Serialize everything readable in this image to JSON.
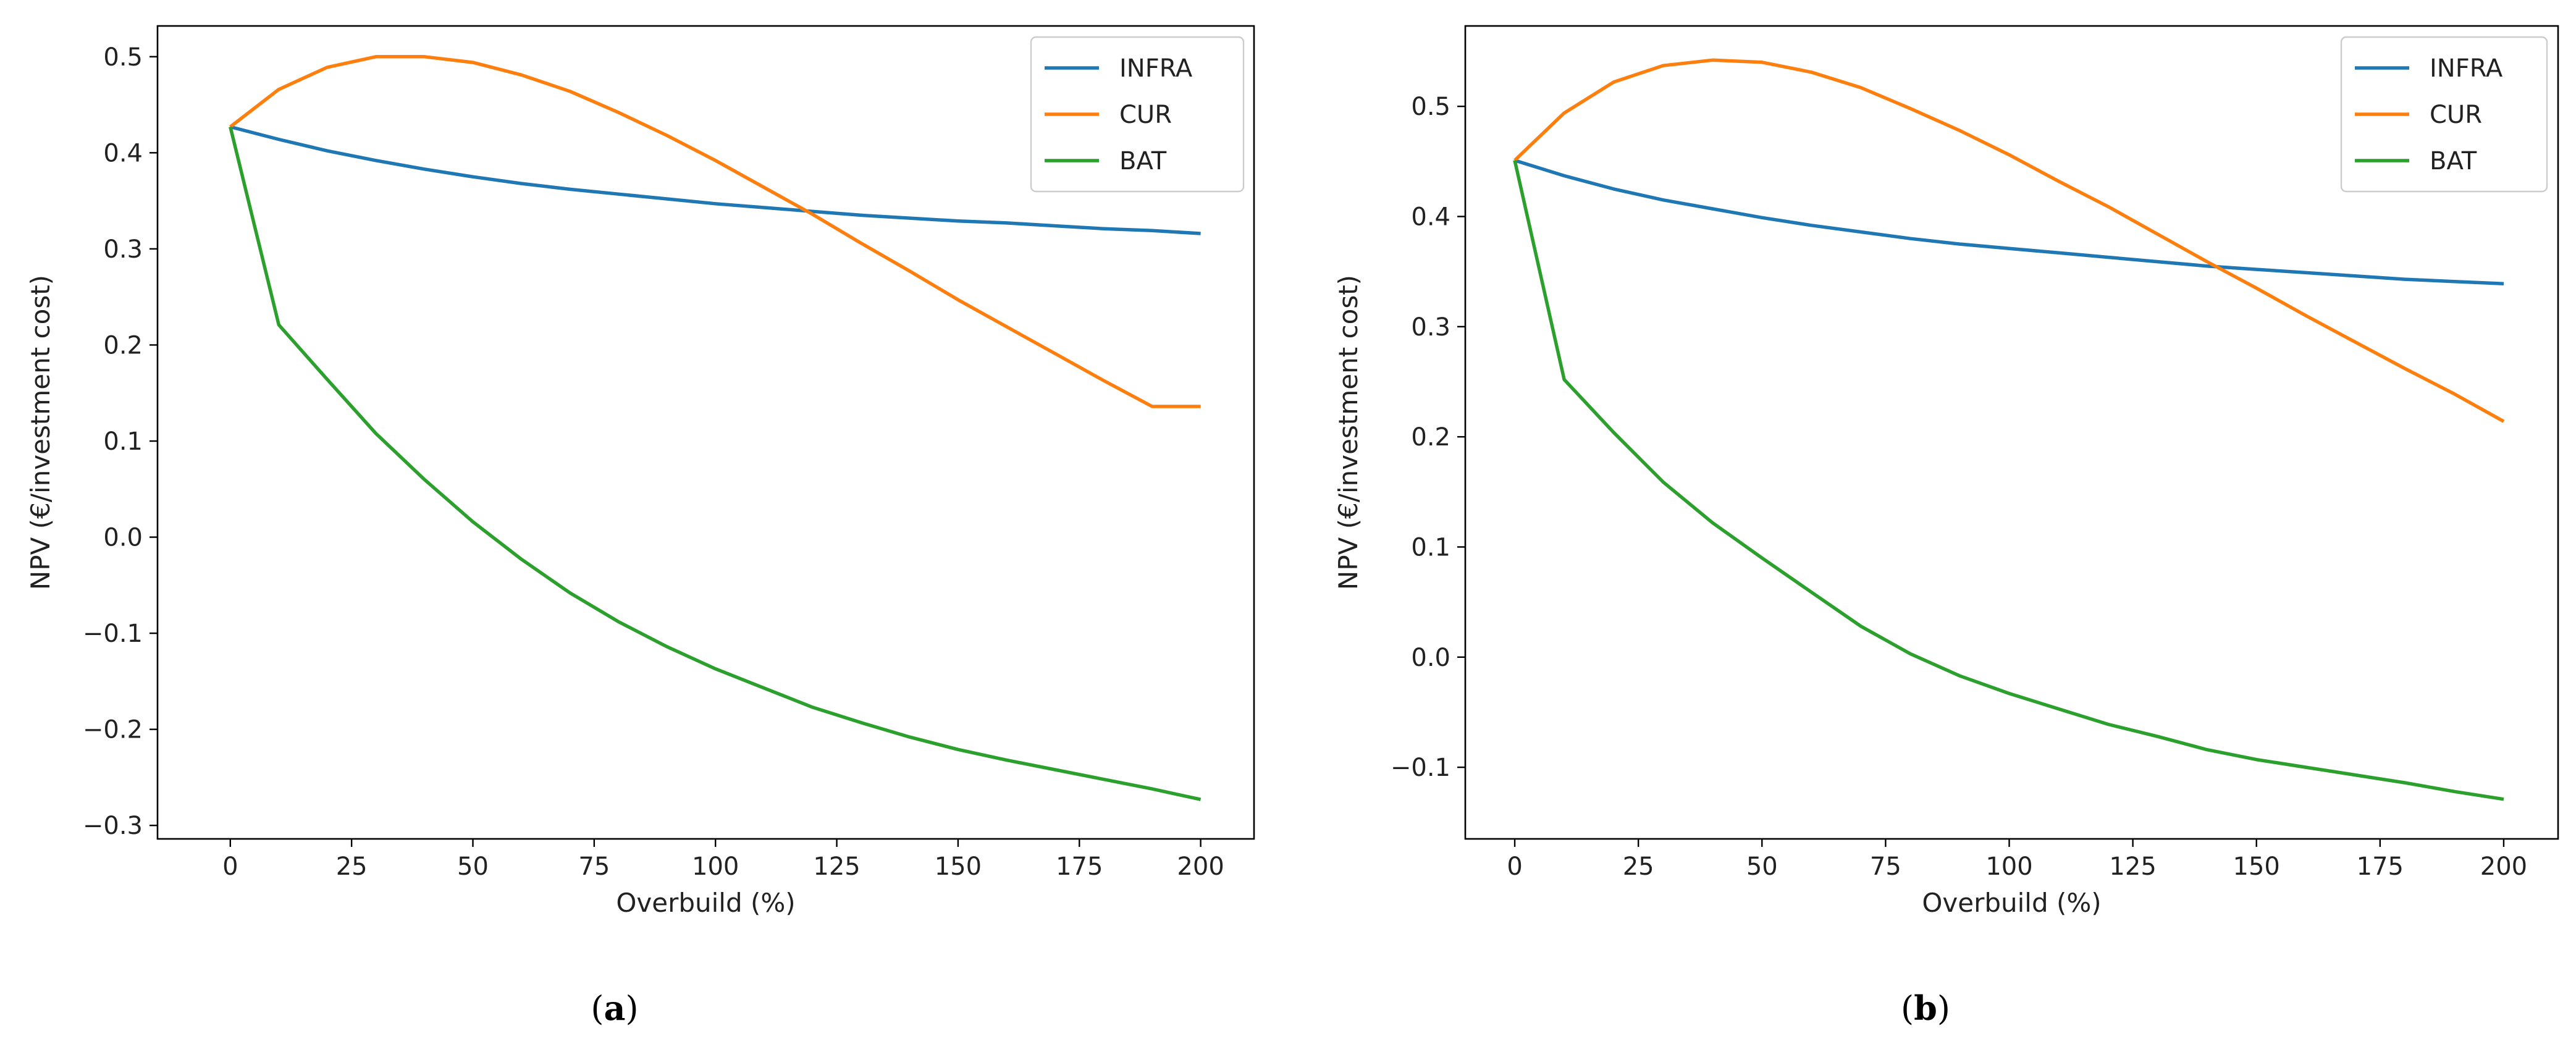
{
  "figure": {
    "captions": [
      "a",
      "b"
    ]
  },
  "colors": {
    "INFRA": "#1f77b4",
    "CUR": "#ff7f0e",
    "BAT": "#2ca02c"
  },
  "chart_data": [
    {
      "type": "line",
      "panel": "a",
      "xlabel": "Overbuild (%)",
      "ylabel": "NPV (€/investment cost)",
      "x": [
        0,
        10,
        20,
        30,
        40,
        50,
        60,
        70,
        80,
        90,
        100,
        110,
        120,
        130,
        140,
        150,
        160,
        170,
        180,
        190,
        200
      ],
      "xlim": [
        -15,
        211
      ],
      "ylim": [
        -0.314,
        0.532
      ],
      "xticks": [
        0,
        25,
        50,
        75,
        100,
        125,
        150,
        175,
        200
      ],
      "yticks": [
        -0.3,
        -0.2,
        -0.1,
        0.0,
        0.1,
        0.2,
        0.3,
        0.4,
        0.5
      ],
      "ytick_labels": [
        "−0.3",
        "−0.2",
        "−0.1",
        "0.0",
        "0.1",
        "0.2",
        "0.3",
        "0.4",
        "0.5"
      ],
      "legend": "top-right",
      "grid": false,
      "series": [
        {
          "name": "INFRA",
          "values": [
            0.427,
            0.414,
            0.402,
            0.392,
            0.383,
            0.375,
            0.368,
            0.362,
            0.357,
            0.352,
            0.347,
            0.343,
            0.339,
            0.335,
            0.332,
            0.329,
            0.327,
            0.324,
            0.321,
            0.319,
            0.316
          ]
        },
        {
          "name": "CUR",
          "values": [
            0.427,
            0.466,
            0.489,
            0.5,
            0.5,
            0.494,
            0.481,
            0.464,
            0.442,
            0.418,
            0.392,
            0.364,
            0.336,
            0.306,
            0.277,
            0.247,
            0.219,
            0.191,
            0.163,
            0.136,
            0.136
          ]
        },
        {
          "name": "BAT",
          "values": [
            0.427,
            0.221,
            0.164,
            0.108,
            0.06,
            0.016,
            -0.023,
            -0.058,
            -0.088,
            -0.114,
            -0.137,
            -0.157,
            -0.177,
            -0.193,
            -0.208,
            -0.221,
            -0.232,
            -0.242,
            -0.252,
            -0.262,
            -0.273
          ]
        }
      ]
    },
    {
      "type": "line",
      "panel": "b",
      "xlabel": "Overbuild (%)",
      "ylabel": "NPV (€/investment cost)",
      "x": [
        0,
        10,
        20,
        30,
        40,
        50,
        60,
        70,
        80,
        90,
        100,
        110,
        120,
        130,
        140,
        150,
        160,
        170,
        180,
        190,
        200
      ],
      "xlim": [
        -10,
        211
      ],
      "ylim": [
        -0.165,
        0.573
      ],
      "xticks": [
        0,
        25,
        50,
        75,
        100,
        125,
        150,
        175,
        200
      ],
      "yticks": [
        -0.1,
        0.0,
        0.1,
        0.2,
        0.3,
        0.4,
        0.5
      ],
      "ytick_labels": [
        "−0.1",
        "0.0",
        "0.1",
        "0.2",
        "0.3",
        "0.4",
        "0.5"
      ],
      "legend": "top-right",
      "grid": false,
      "series": [
        {
          "name": "INFRA",
          "values": [
            0.451,
            0.437,
            0.425,
            0.415,
            0.407,
            0.399,
            0.392,
            0.386,
            0.38,
            0.375,
            0.371,
            0.367,
            0.363,
            0.359,
            0.355,
            0.352,
            0.349,
            0.346,
            0.343,
            0.341,
            0.339
          ]
        },
        {
          "name": "CUR",
          "values": [
            0.451,
            0.494,
            0.522,
            0.537,
            0.542,
            0.54,
            0.531,
            0.517,
            0.498,
            0.478,
            0.456,
            0.432,
            0.409,
            0.384,
            0.359,
            0.335,
            0.31,
            0.286,
            0.262,
            0.239,
            0.214
          ]
        },
        {
          "name": "BAT",
          "values": [
            0.451,
            0.252,
            0.204,
            0.159,
            0.122,
            0.09,
            0.059,
            0.028,
            0.003,
            -0.017,
            -0.033,
            -0.047,
            -0.061,
            -0.072,
            -0.084,
            -0.093,
            -0.1,
            -0.107,
            -0.114,
            -0.122,
            -0.129
          ]
        }
      ]
    }
  ]
}
